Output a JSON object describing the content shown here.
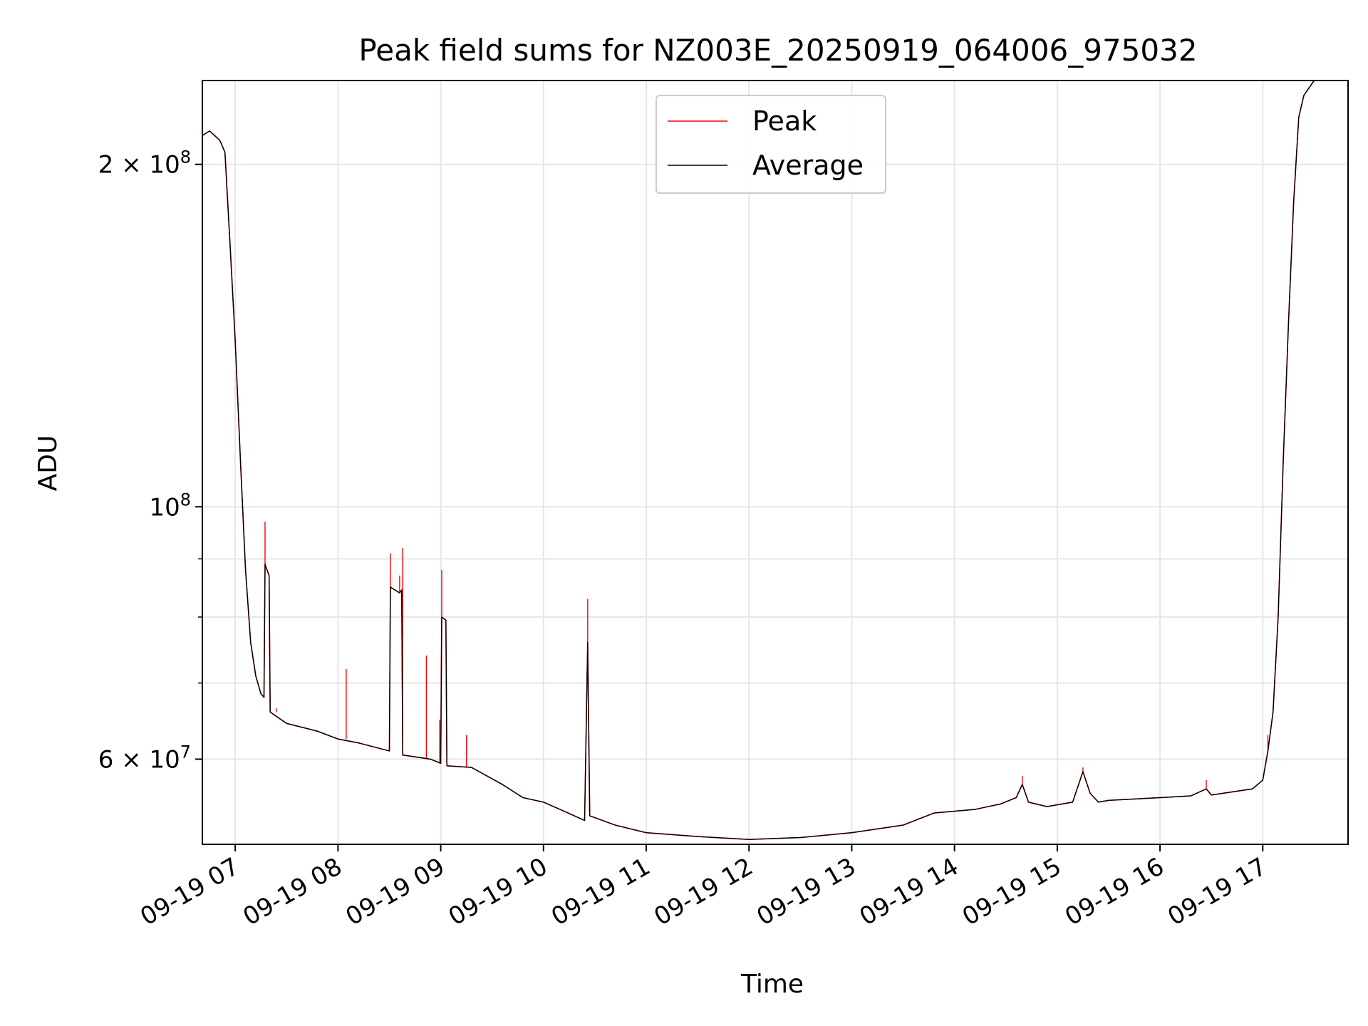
{
  "chart_data": {
    "type": "line",
    "title": "Peak field sums for NZ003E_20250919_064006_975032",
    "xlabel": "Time",
    "ylabel": "ADU",
    "yscale": "log",
    "ylim": [
      50500000,
      237000000
    ],
    "xlim": [
      6.68,
      17.83
    ],
    "grid": true,
    "legend_position": "top-center",
    "x_ticks": [
      {
        "value": 7,
        "label": "09-19 07"
      },
      {
        "value": 8,
        "label": "09-19 08"
      },
      {
        "value": 9,
        "label": "09-19 09"
      },
      {
        "value": 10,
        "label": "09-19 10"
      },
      {
        "value": 11,
        "label": "09-19 11"
      },
      {
        "value": 12,
        "label": "09-19 12"
      },
      {
        "value": 13,
        "label": "09-19 13"
      },
      {
        "value": 14,
        "label": "09-19 14"
      },
      {
        "value": 15,
        "label": "09-19 15"
      },
      {
        "value": 16,
        "label": "09-19 16"
      },
      {
        "value": 17,
        "label": "09-19 17"
      }
    ],
    "y_major_ticks": [
      {
        "value": 60000000,
        "mantissa": "6",
        "exponent": "7"
      },
      {
        "value": 100000000,
        "mantissa": "",
        "exponent": "8"
      },
      {
        "value": 200000000,
        "mantissa": "2",
        "exponent": "8"
      }
    ],
    "y_minor_ticks": [
      70000000,
      80000000,
      90000000
    ],
    "series": [
      {
        "name": "Peak",
        "color": "#ff0000",
        "baseline": [
          [
            6.68,
            212000000
          ],
          [
            6.75,
            214000000
          ],
          [
            6.85,
            210000000
          ],
          [
            6.9,
            205000000
          ],
          [
            6.95,
            170000000
          ],
          [
            7.0,
            140000000
          ],
          [
            7.05,
            110000000
          ],
          [
            7.1,
            88000000
          ],
          [
            7.15,
            76000000
          ],
          [
            7.2,
            71000000
          ],
          [
            7.25,
            68500000
          ],
          [
            7.28,
            68000000
          ],
          [
            7.29,
            89000000
          ],
          [
            7.33,
            87000000
          ],
          [
            7.34,
            66000000
          ],
          [
            7.5,
            64500000
          ],
          [
            7.8,
            63500000
          ],
          [
            8.0,
            62500000
          ],
          [
            8.2,
            62000000
          ],
          [
            8.5,
            61000000
          ],
          [
            8.51,
            85000000
          ],
          [
            8.6,
            84000000
          ],
          [
            8.62,
            84500000
          ],
          [
            8.63,
            60500000
          ],
          [
            8.9,
            60000000
          ],
          [
            9.0,
            59500000
          ],
          [
            9.01,
            80000000
          ],
          [
            9.05,
            79500000
          ],
          [
            9.06,
            59200000
          ],
          [
            9.3,
            59000000
          ],
          [
            9.6,
            57000000
          ],
          [
            9.8,
            55500000
          ],
          [
            10.0,
            55000000
          ],
          [
            10.2,
            54000000
          ],
          [
            10.4,
            53000000
          ],
          [
            10.43,
            76000000
          ],
          [
            10.45,
            53500000
          ],
          [
            10.7,
            52500000
          ],
          [
            11.0,
            51700000
          ],
          [
            11.5,
            51300000
          ],
          [
            12.0,
            51000000
          ],
          [
            12.5,
            51200000
          ],
          [
            13.0,
            51700000
          ],
          [
            13.5,
            52500000
          ],
          [
            13.8,
            53800000
          ],
          [
            14.2,
            54200000
          ],
          [
            14.45,
            54800000
          ],
          [
            14.6,
            55500000
          ],
          [
            14.66,
            57000000
          ],
          [
            14.72,
            55000000
          ],
          [
            14.9,
            54500000
          ],
          [
            15.15,
            55000000
          ],
          [
            15.25,
            58500000
          ],
          [
            15.32,
            56000000
          ],
          [
            15.4,
            55000000
          ],
          [
            15.5,
            55200000
          ],
          [
            16.0,
            55500000
          ],
          [
            16.3,
            55700000
          ],
          [
            16.45,
            56500000
          ],
          [
            16.5,
            55800000
          ],
          [
            16.9,
            56500000
          ],
          [
            17.0,
            57500000
          ],
          [
            17.05,
            61000000
          ],
          [
            17.1,
            66000000
          ],
          [
            17.15,
            80000000
          ],
          [
            17.2,
            110000000
          ],
          [
            17.25,
            145000000
          ],
          [
            17.3,
            185000000
          ],
          [
            17.35,
            220000000
          ],
          [
            17.4,
            230000000
          ],
          [
            17.5,
            237000000
          ],
          [
            17.83,
            237000000
          ]
        ],
        "spikes": [
          [
            7.29,
            97000000
          ],
          [
            7.4,
            66500000
          ],
          [
            8.08,
            72000000
          ],
          [
            8.51,
            91000000
          ],
          [
            8.6,
            87000000
          ],
          [
            8.63,
            92000000
          ],
          [
            8.86,
            74000000
          ],
          [
            8.99,
            65000000
          ],
          [
            9.01,
            88000000
          ],
          [
            9.25,
            63000000
          ],
          [
            10.43,
            83000000
          ],
          [
            14.66,
            58000000
          ],
          [
            15.25,
            59000000
          ],
          [
            16.45,
            57500000
          ],
          [
            17.05,
            63000000
          ]
        ]
      },
      {
        "name": "Average",
        "color": "#000000",
        "baseline": [
          [
            6.68,
            212000000
          ],
          [
            6.75,
            214000000
          ],
          [
            6.85,
            210000000
          ],
          [
            6.9,
            205000000
          ],
          [
            6.95,
            170000000
          ],
          [
            7.0,
            140000000
          ],
          [
            7.05,
            110000000
          ],
          [
            7.1,
            88000000
          ],
          [
            7.15,
            76000000
          ],
          [
            7.2,
            71000000
          ],
          [
            7.25,
            68500000
          ],
          [
            7.28,
            68000000
          ],
          [
            7.29,
            89000000
          ],
          [
            7.33,
            87000000
          ],
          [
            7.34,
            66000000
          ],
          [
            7.5,
            64500000
          ],
          [
            7.8,
            63500000
          ],
          [
            8.0,
            62500000
          ],
          [
            8.2,
            62000000
          ],
          [
            8.5,
            61000000
          ],
          [
            8.51,
            85000000
          ],
          [
            8.6,
            84000000
          ],
          [
            8.62,
            84500000
          ],
          [
            8.63,
            60500000
          ],
          [
            8.9,
            60000000
          ],
          [
            9.0,
            59500000
          ],
          [
            9.01,
            80000000
          ],
          [
            9.05,
            79500000
          ],
          [
            9.06,
            59200000
          ],
          [
            9.3,
            59000000
          ],
          [
            9.6,
            57000000
          ],
          [
            9.8,
            55500000
          ],
          [
            10.0,
            55000000
          ],
          [
            10.2,
            54000000
          ],
          [
            10.4,
            53000000
          ],
          [
            10.43,
            76000000
          ],
          [
            10.45,
            53500000
          ],
          [
            10.7,
            52500000
          ],
          [
            11.0,
            51700000
          ],
          [
            11.5,
            51300000
          ],
          [
            12.0,
            51000000
          ],
          [
            12.5,
            51200000
          ],
          [
            13.0,
            51700000
          ],
          [
            13.5,
            52500000
          ],
          [
            13.8,
            53800000
          ],
          [
            14.2,
            54200000
          ],
          [
            14.45,
            54800000
          ],
          [
            14.6,
            55500000
          ],
          [
            14.66,
            57000000
          ],
          [
            14.72,
            55000000
          ],
          [
            14.9,
            54500000
          ],
          [
            15.15,
            55000000
          ],
          [
            15.25,
            58500000
          ],
          [
            15.32,
            56000000
          ],
          [
            15.4,
            55000000
          ],
          [
            15.5,
            55200000
          ],
          [
            16.0,
            55500000
          ],
          [
            16.3,
            55700000
          ],
          [
            16.45,
            56500000
          ],
          [
            16.5,
            55800000
          ],
          [
            16.9,
            56500000
          ],
          [
            17.0,
            57500000
          ],
          [
            17.05,
            61000000
          ],
          [
            17.1,
            66000000
          ],
          [
            17.15,
            80000000
          ],
          [
            17.2,
            110000000
          ],
          [
            17.25,
            145000000
          ],
          [
            17.3,
            185000000
          ],
          [
            17.35,
            220000000
          ],
          [
            17.4,
            230000000
          ],
          [
            17.5,
            237000000
          ],
          [
            17.83,
            237000000
          ]
        ]
      }
    ]
  }
}
